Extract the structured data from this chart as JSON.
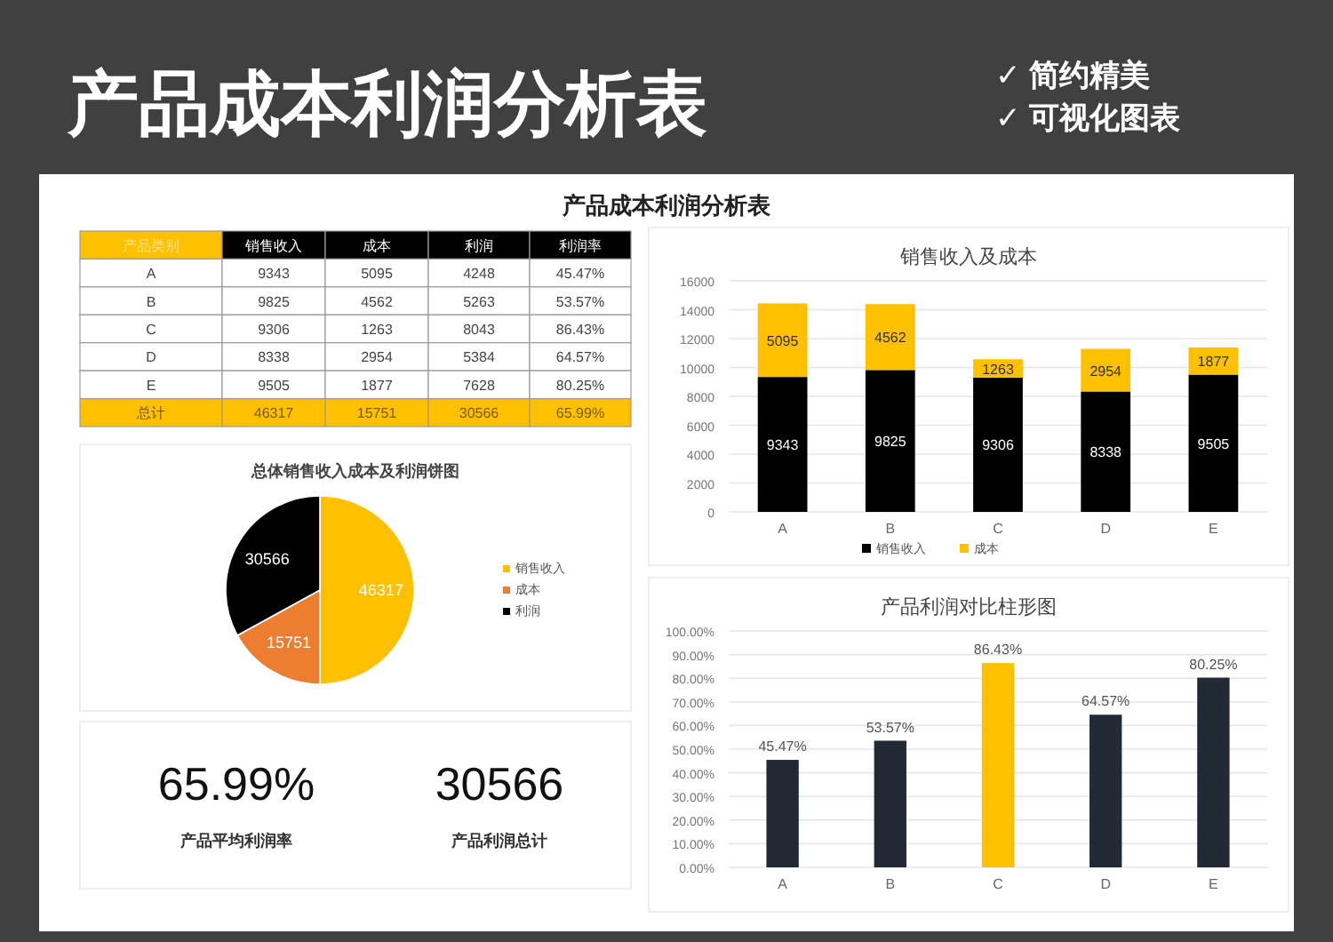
{
  "chart_data": [
    {
      "type": "other",
      "title": "产品成本利润分析表",
      "subtitle": "产品成本利润分析表",
      "annotations": [
        "✓ 简约精美",
        "✓ 可视化图表"
      ]
    },
    {
      "type": "other",
      "categories": [
        "产品类别",
        "销售收入",
        "成本",
        "利润",
        "利润率"
      ],
      "y_categories": [
        "A",
        "B",
        "C",
        "D",
        "E",
        "总计"
      ],
      "cell_labels": [
        [
          "9343",
          "5095",
          "4248",
          "45.47%"
        ],
        [
          "9825",
          "4562",
          "5263",
          "53.57%"
        ],
        [
          "9306",
          "1263",
          "8043",
          "86.43%"
        ],
        [
          "8338",
          "2954",
          "5384",
          "64.57%"
        ],
        [
          "9505",
          "1877",
          "7628",
          "80.25%"
        ],
        [
          "46317",
          "15751",
          "30566",
          "65.99%"
        ]
      ]
    },
    {
      "type": "bar",
      "title": "销售收入及成本",
      "categories": [
        "A",
        "B",
        "C",
        "D",
        "E"
      ],
      "stacked": true,
      "series": [
        {
          "name": "销售收入",
          "color": "#000000",
          "values": [
            9343,
            9825,
            9306,
            8338,
            9505
          ]
        },
        {
          "name": "成本",
          "color": "#ffc000",
          "values": [
            5095,
            4562,
            1263,
            2954,
            1877
          ]
        }
      ],
      "ylim": [
        0,
        16000
      ],
      "yticks": [
        0,
        2000,
        4000,
        6000,
        8000,
        10000,
        12000,
        14000,
        16000
      ],
      "grid": "y",
      "legend": "bottom",
      "data_labels": true
    },
    {
      "type": "pie",
      "title": "总体销售收入成本及利润饼图",
      "categories": [
        "销售收入",
        "成本",
        "利润"
      ],
      "values": [
        46317,
        15751,
        30566
      ],
      "colors": [
        "#ffc000",
        "#ed7d31",
        "#000000"
      ],
      "legend": "right",
      "data_labels": true
    },
    {
      "type": "other",
      "annotations": [
        "65.99%",
        "产品平均利润率",
        "30566",
        "产品利润总计"
      ]
    },
    {
      "type": "bar",
      "title": "产品利润对比柱形图",
      "categories": [
        "A",
        "B",
        "C",
        "D",
        "E"
      ],
      "values": [
        45.47,
        53.57,
        86.43,
        64.57,
        80.25
      ],
      "colors": [
        "#222a35",
        "#222a35",
        "#ffc000",
        "#222a35",
        "#222a35"
      ],
      "value_labels": [
        "45.47%",
        "53.57%",
        "86.43%",
        "64.57%",
        "80.25%"
      ],
      "ylim": [
        0,
        100
      ],
      "yticks": [
        {
          "value": 0,
          "label": "0.00%"
        },
        {
          "value": 10,
          "label": "10.00%"
        },
        {
          "value": 20,
          "label": "20.00%"
        },
        {
          "value": 30,
          "label": "30.00%"
        },
        {
          "value": 40,
          "label": "40.00%"
        },
        {
          "value": 50,
          "label": "50.00%"
        },
        {
          "value": 60,
          "label": "60.00%"
        },
        {
          "value": 70,
          "label": "70.00%"
        },
        {
          "value": 80,
          "label": "80.00%"
        },
        {
          "value": 90,
          "label": "90.00%"
        },
        {
          "value": 100,
          "label": "100.00%"
        }
      ],
      "grid": "y"
    }
  ]
}
